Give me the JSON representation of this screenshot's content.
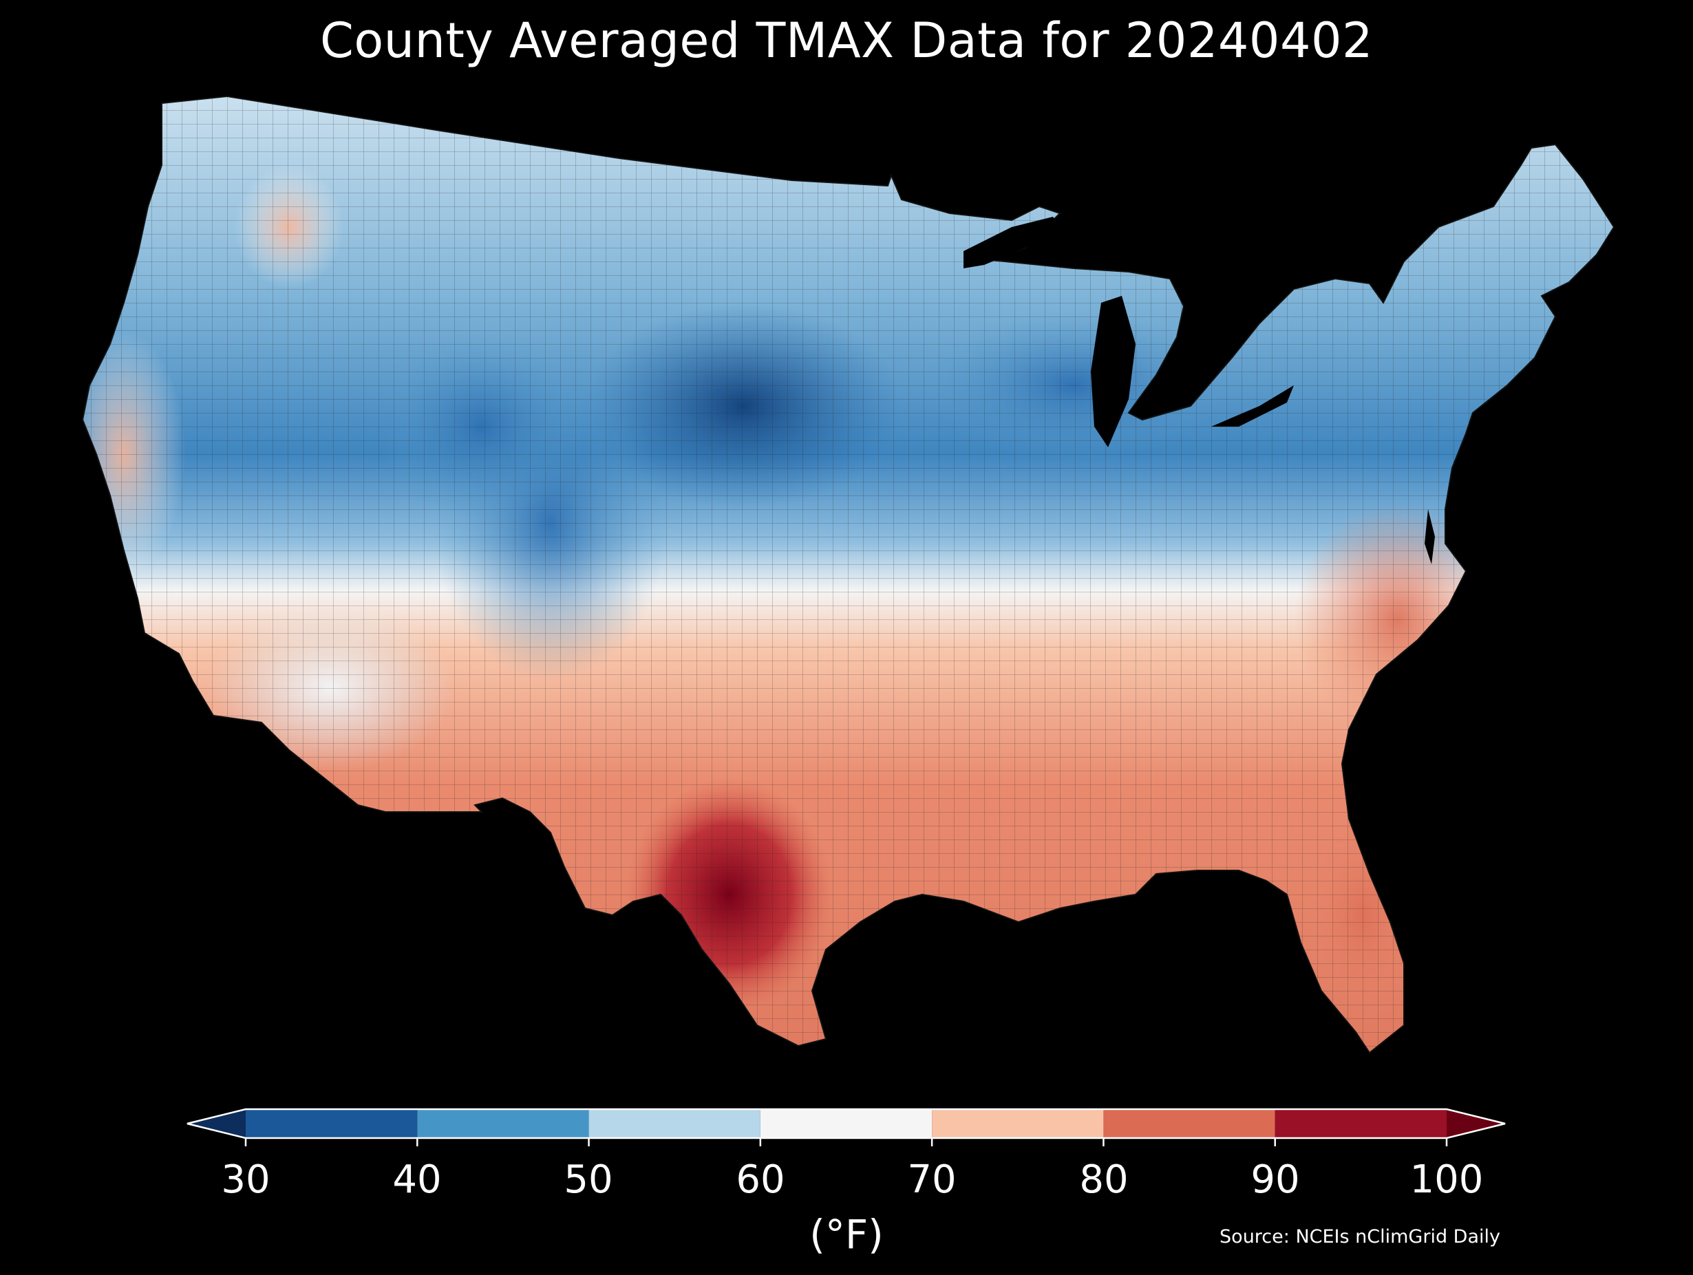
{
  "title": "County Averaged TMAX Data for 20240402",
  "colorbar": {
    "ticks": [
      "30",
      "40",
      "50",
      "60",
      "70",
      "80",
      "90",
      "100"
    ],
    "units": "(°F)",
    "bins": [
      {
        "min": 30,
        "max": 40,
        "color": "#1b5899"
      },
      {
        "min": 40,
        "max": 50,
        "color": "#4695c7"
      },
      {
        "min": 50,
        "max": 60,
        "color": "#b6d6ea"
      },
      {
        "min": 60,
        "max": 70,
        "color": "#f5f5f5"
      },
      {
        "min": 70,
        "max": 80,
        "color": "#f9c3a7"
      },
      {
        "min": 80,
        "max": 90,
        "color": "#dc6b54"
      },
      {
        "min": 90,
        "max": 100,
        "color": "#9a1026"
      }
    ],
    "under_color": "#0d2d5c",
    "over_color": "#6a0013"
  },
  "source": "Source: NCEIs nClimGrid Daily"
}
